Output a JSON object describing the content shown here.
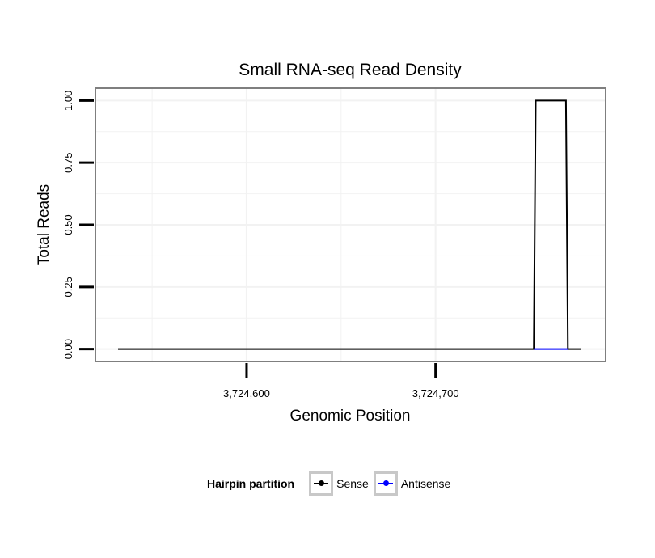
{
  "chart_data": {
    "type": "line",
    "title": "Small RNA-seq Read Density",
    "xlabel": "Genomic Position",
    "ylabel": "Total Reads",
    "xlim": [
      3724520,
      3724790
    ],
    "ylim": [
      -0.05,
      1.05
    ],
    "x_ticks": [
      {
        "value": 3724600,
        "label": "3,724,600"
      },
      {
        "value": 3724700,
        "label": "3,724,700"
      }
    ],
    "y_ticks": [
      {
        "value": 0,
        "label": "0.00"
      },
      {
        "value": 0.25,
        "label": "0.25"
      },
      {
        "value": 0.5,
        "label": "0.50"
      },
      {
        "value": 0.75,
        "label": "0.75"
      },
      {
        "value": 1,
        "label": "1.00"
      }
    ],
    "series": [
      {
        "name": "Sense",
        "color": "#000000",
        "x": [
          3724532,
          3724752,
          3724753,
          3724769,
          3724770,
          3724777
        ],
        "y": [
          0,
          0,
          1,
          1,
          0,
          0
        ]
      },
      {
        "name": "Antisense",
        "color": "#0000ff",
        "x": [
          3724752,
          3724770
        ],
        "y": [
          0,
          0
        ]
      }
    ],
    "grid": true,
    "legend": {
      "title": "Hairpin partition",
      "position": "bottom"
    }
  }
}
